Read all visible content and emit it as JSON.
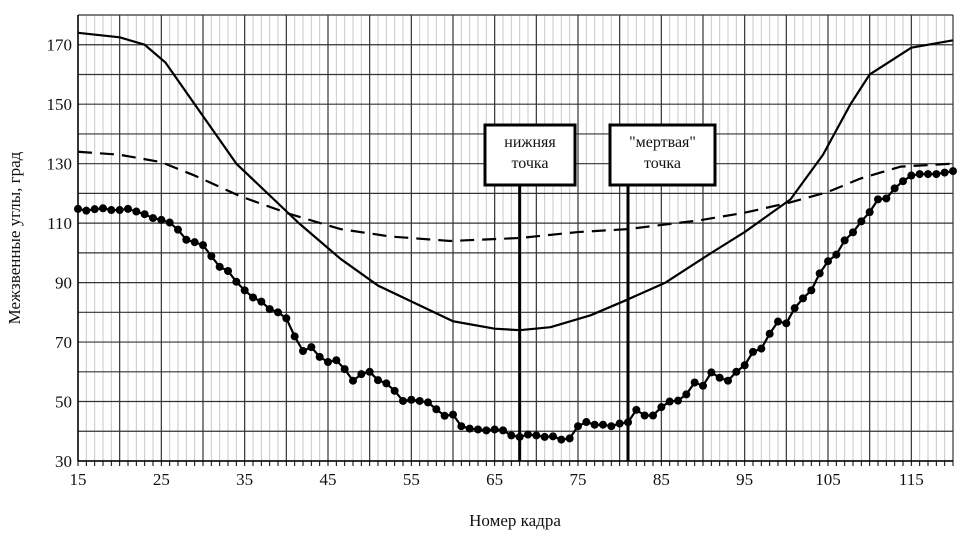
{
  "chart_data": {
    "type": "line",
    "title": "",
    "xlabel": "Номер кадра",
    "ylabel": "Межзвенные углы, град",
    "xlim": [
      15,
      120
    ],
    "ylim": [
      30,
      180
    ],
    "xticks": [
      15,
      25,
      35,
      45,
      55,
      65,
      75,
      85,
      95,
      105,
      115
    ],
    "yticks": [
      30,
      50,
      70,
      90,
      110,
      130,
      150,
      170
    ],
    "grid": true,
    "series": [
      {
        "name": "solid",
        "style": "solid",
        "x": [
          15,
          20,
          23,
          25.5,
          29,
          34,
          41.5,
          46.5,
          51,
          57,
          60,
          65,
          68,
          71.7,
          76.5,
          80.7,
          85.5,
          91,
          95,
          100.5,
          104.4,
          107.7,
          110,
          115,
          120
        ],
        "y": [
          174,
          172.5,
          170,
          164,
          150,
          130,
          110,
          98,
          89,
          81,
          77,
          74.5,
          74,
          75,
          79,
          84,
          90,
          100,
          107,
          118,
          133,
          150,
          160,
          169,
          171.5
        ]
      },
      {
        "name": "dashed",
        "style": "dashed",
        "x": [
          15,
          20,
          25,
          29,
          34.5,
          40.5,
          46.5,
          52.5,
          59.7,
          68,
          75,
          81,
          89.7,
          95,
          100.5,
          105,
          108.9,
          113.7,
          120
        ],
        "y": [
          134,
          133,
          130.5,
          126,
          119,
          113,
          108,
          105.5,
          104,
          105,
          107,
          108,
          111,
          113.5,
          117,
          120.5,
          125,
          129,
          130
        ]
      },
      {
        "name": "dotted-markers",
        "style": "solid-markers",
        "x": [
          15,
          16,
          17,
          18,
          19,
          20,
          21,
          22,
          23,
          24,
          25,
          26,
          27,
          28,
          29,
          30,
          31,
          32,
          33,
          34,
          35,
          36,
          37,
          38,
          39,
          40,
          41,
          42,
          43,
          44,
          45,
          46,
          47,
          48,
          49,
          50,
          51,
          52,
          53,
          54,
          55,
          56,
          57,
          58,
          59,
          60,
          61,
          62,
          63,
          64,
          65,
          66,
          67,
          68,
          69,
          70,
          71,
          72,
          73,
          74,
          75,
          76,
          77,
          78,
          79,
          80,
          81,
          82,
          83,
          84,
          85,
          86,
          87,
          88,
          89,
          90,
          91,
          92,
          93,
          94,
          95,
          96,
          97,
          98,
          99,
          100,
          101,
          102,
          103,
          104,
          105,
          106,
          107,
          108,
          109,
          110,
          111,
          112,
          113,
          114,
          115,
          116,
          117,
          118,
          119,
          120
        ],
        "y": [
          114.8,
          114.2,
          114.7,
          115,
          114.4,
          114.4,
          114.8,
          113.9,
          113,
          111.7,
          111.1,
          110.2,
          107.8,
          104.4,
          103.6,
          102.6,
          98.9,
          95.3,
          93.9,
          90.3,
          87.4,
          85,
          83.6,
          81.1,
          80,
          78,
          71.9,
          67,
          68.3,
          65,
          63.3,
          63.9,
          60.9,
          57,
          59.2,
          60,
          57.2,
          56.1,
          53.6,
          50.2,
          50.6,
          50.2,
          49.7,
          47.4,
          45.2,
          45.6,
          41.7,
          40.9,
          40.6,
          40.3,
          40.6,
          40.3,
          38.6,
          38.1,
          38.9,
          38.6,
          38.1,
          38.3,
          37.2,
          37.6,
          41.7,
          43.1,
          42.2,
          42.2,
          41.7,
          42.6,
          43,
          47.2,
          45.3,
          45.3,
          48.1,
          50,
          50.3,
          52.4,
          56.4,
          55.3,
          59.8,
          58,
          57,
          60,
          62.2,
          66.7,
          67.8,
          72.8,
          76.9,
          76.3,
          81.4,
          84.7,
          87.4,
          93.1,
          97.2,
          99.4,
          104.2,
          106.9,
          110.6,
          113.7,
          118,
          118.3,
          121.7,
          124.1,
          126,
          126.5,
          126.5,
          126.5,
          127,
          127.5
        ]
      }
    ],
    "annotations": [
      {
        "x": 68,
        "lines": [
          "нижняя",
          "точка"
        ]
      },
      {
        "x": 81,
        "lines": [
          "\"мертвая\"",
          "точка"
        ]
      }
    ]
  }
}
